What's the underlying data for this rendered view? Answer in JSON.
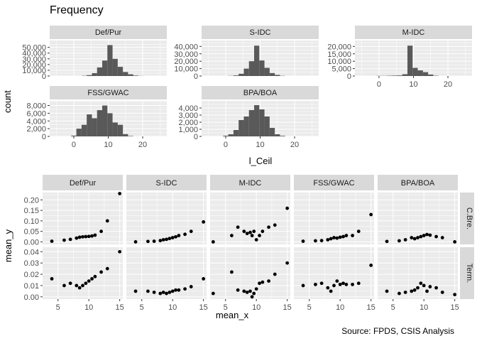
{
  "title": "Frequency",
  "source": "Source: FPDS, CSIS Analysis",
  "chart_data": [
    {
      "type": "bar",
      "title": "Frequency",
      "xlabel": "l_Ceil",
      "ylabel": "count",
      "x_ticks": [
        0,
        10,
        20
      ],
      "xlim": [
        -7,
        27
      ],
      "bin_width": 1.5,
      "grid": true,
      "bar_color": "#595959",
      "panels": [
        {
          "name": "Def/Pur",
          "y_ticks": [
            0,
            10000,
            20000,
            30000,
            40000,
            50000
          ],
          "y_tick_labels": [
            "0",
            "10,000",
            "20,000",
            "30,000",
            "40,000",
            "50,000"
          ],
          "ylim": [
            0,
            62000
          ],
          "bins": [
            {
              "x": 3,
              "count": 400
            },
            {
              "x": 4.5,
              "count": 1500
            },
            {
              "x": 6,
              "count": 5000
            },
            {
              "x": 7.5,
              "count": 15000
            },
            {
              "x": 9,
              "count": 27000
            },
            {
              "x": 10.5,
              "count": 54000
            },
            {
              "x": 12,
              "count": 30000
            },
            {
              "x": 13.5,
              "count": 16000
            },
            {
              "x": 15,
              "count": 7000
            },
            {
              "x": 16.5,
              "count": 3000
            },
            {
              "x": 18,
              "count": 800
            },
            {
              "x": 19.5,
              "count": 200
            }
          ]
        },
        {
          "name": "S-IDC",
          "y_ticks": [
            0,
            10000,
            20000,
            30000,
            40000
          ],
          "y_tick_labels": [
            "0",
            "10,000",
            "20,000",
            "30,000",
            "40,000"
          ],
          "ylim": [
            0,
            48000
          ],
          "bins": [
            {
              "x": 1.5,
              "count": 200
            },
            {
              "x": 3,
              "count": 800
            },
            {
              "x": 4.5,
              "count": 3000
            },
            {
              "x": 6,
              "count": 10000
            },
            {
              "x": 7.5,
              "count": 20000
            },
            {
              "x": 9,
              "count": 41000
            },
            {
              "x": 10.5,
              "count": 21000
            },
            {
              "x": 12,
              "count": 11000
            },
            {
              "x": 13.5,
              "count": 4000
            },
            {
              "x": 15,
              "count": 1500
            },
            {
              "x": 16.5,
              "count": 300
            }
          ]
        },
        {
          "name": "M-IDC",
          "y_ticks": [
            0,
            5000,
            10000,
            15000,
            20000
          ],
          "y_tick_labels": [
            "0",
            "5,000",
            "10,000",
            "15,000",
            "20,000"
          ],
          "ylim": [
            0,
            24000
          ],
          "bins": [
            {
              "x": 0,
              "count": 100
            },
            {
              "x": 1.5,
              "count": 100
            },
            {
              "x": 3,
              "count": 200
            },
            {
              "x": 4.5,
              "count": 300
            },
            {
              "x": 6,
              "count": 400
            },
            {
              "x": 7.5,
              "count": 1200
            },
            {
              "x": 9,
              "count": 20500
            },
            {
              "x": 10.5,
              "count": 5500
            },
            {
              "x": 12,
              "count": 3800
            },
            {
              "x": 13.5,
              "count": 2600
            },
            {
              "x": 15,
              "count": 1000
            },
            {
              "x": 16.5,
              "count": 200
            }
          ]
        },
        {
          "name": "FSS/GWAC",
          "y_ticks": [
            0,
            2000,
            4000,
            6000,
            8000
          ],
          "y_tick_labels": [
            "0",
            "2,000",
            "4,000",
            "6,000",
            "8,000"
          ],
          "ylim": [
            0,
            9200
          ],
          "bins": [
            {
              "x": 0,
              "count": 200
            },
            {
              "x": 1.5,
              "count": 2000
            },
            {
              "x": 3,
              "count": 3000
            },
            {
              "x": 4.5,
              "count": 5700
            },
            {
              "x": 6,
              "count": 4700
            },
            {
              "x": 7.5,
              "count": 6800
            },
            {
              "x": 9,
              "count": 8000
            },
            {
              "x": 10.5,
              "count": 6000
            },
            {
              "x": 12,
              "count": 3600
            },
            {
              "x": 13.5,
              "count": 3000
            },
            {
              "x": 15,
              "count": 600
            },
            {
              "x": 16.5,
              "count": 100
            }
          ]
        },
        {
          "name": "BPA/BOA",
          "y_ticks": [
            0,
            1000,
            2000,
            3000,
            4000
          ],
          "y_tick_labels": [
            "0",
            "1,000",
            "2,000",
            "3,000",
            "4,000"
          ],
          "ylim": [
            0,
            5000
          ],
          "bins": [
            {
              "x": 0,
              "count": 100
            },
            {
              "x": 1.5,
              "count": 300
            },
            {
              "x": 3,
              "count": 900
            },
            {
              "x": 4.5,
              "count": 2300
            },
            {
              "x": 6,
              "count": 2800
            },
            {
              "x": 7.5,
              "count": 3700
            },
            {
              "x": 9,
              "count": 4400
            },
            {
              "x": 10.5,
              "count": 3800
            },
            {
              "x": 12,
              "count": 2800
            },
            {
              "x": 13.5,
              "count": 1200
            },
            {
              "x": 15,
              "count": 300
            },
            {
              "x": 16.5,
              "count": 80
            }
          ]
        }
      ]
    },
    {
      "type": "scatter",
      "xlabel": "mean_x",
      "ylabel": "mean_y",
      "x_ticks": [
        5,
        10,
        15
      ],
      "xlim": [
        2.5,
        15.5
      ],
      "grid": true,
      "point_color": "#000000",
      "columns": [
        "Def/Pur",
        "S-IDC",
        "M-IDC",
        "FSS/GWAC",
        "BPA/BOA"
      ],
      "rows": [
        {
          "name": "C.Bre.",
          "y_ticks": [
            0.0,
            0.05,
            0.1,
            0.15,
            0.2
          ],
          "y_tick_labels": [
            "0.00",
            "0.05",
            "0.10",
            "0.15",
            "0.20"
          ],
          "ylim": [
            -0.012,
            0.235
          ],
          "panels": [
            {
              "x": [
                4,
                6,
                7,
                8,
                8.5,
                9,
                9.5,
                10,
                10.5,
                11,
                12,
                13,
                15
              ],
              "y": [
                0.003,
                0.008,
                0.012,
                0.018,
                0.022,
                0.024,
                0.025,
                0.026,
                0.028,
                0.032,
                0.05,
                0.1,
                0.23
              ]
            },
            {
              "x": [
                4,
                6,
                7,
                8,
                8.5,
                9,
                9.5,
                10,
                10.5,
                11,
                12,
                13,
                15
              ],
              "y": [
                0.0,
                0.002,
                0.003,
                0.006,
                0.01,
                0.012,
                0.016,
                0.02,
                0.024,
                0.03,
                0.036,
                0.05,
                0.095
              ]
            },
            {
              "x": [
                3,
                6,
                7,
                8,
                8.5,
                9,
                9.3,
                9.6,
                10,
                10.5,
                11,
                12,
                13,
                15
              ],
              "y": [
                0.0,
                0.03,
                0.07,
                0.05,
                0.04,
                0.045,
                0.03,
                0.05,
                0.01,
                0.03,
                0.05,
                0.07,
                0.08,
                0.16
              ]
            },
            {
              "x": [
                4,
                6,
                7,
                8,
                8.5,
                9,
                9.5,
                10,
                10.5,
                11,
                12,
                13,
                15
              ],
              "y": [
                0.003,
                0.005,
                0.006,
                0.01,
                0.015,
                0.02,
                0.018,
                0.022,
                0.025,
                0.03,
                0.03,
                0.05,
                0.13
              ]
            },
            {
              "x": [
                4,
                6,
                7,
                8,
                8.5,
                9,
                9.5,
                10,
                10.5,
                11,
                12,
                13,
                15
              ],
              "y": [
                0.002,
                0.005,
                0.01,
                0.02,
                0.015,
                0.02,
                0.025,
                0.03,
                0.035,
                0.032,
                0.025,
                0.02,
                0.0
              ]
            }
          ]
        },
        {
          "name": "Term.",
          "y_ticks": [
            0.0,
            0.01,
            0.02,
            0.03,
            0.04
          ],
          "y_tick_labels": [
            "0.00",
            "0.01",
            "0.02",
            "0.03",
            "0.04"
          ],
          "ylim": [
            -0.002,
            0.044
          ],
          "panels": [
            {
              "x": [
                4,
                6,
                7,
                8,
                8.5,
                9,
                9.5,
                10,
                10.5,
                11,
                12,
                13,
                15
              ],
              "y": [
                0.016,
                0.01,
                0.012,
                0.01,
                0.008,
                0.01,
                0.012,
                0.014,
                0.016,
                0.018,
                0.022,
                0.025,
                0.04
              ]
            },
            {
              "x": [
                4,
                6,
                7,
                8,
                8.5,
                9,
                9.5,
                10,
                10.5,
                11,
                12,
                13,
                15
              ],
              "y": [
                0.005,
                0.005,
                0.004,
                0.003,
                0.004,
                0.003,
                0.004,
                0.005,
                0.006,
                0.006,
                0.007,
                0.009,
                0.016
              ]
            },
            {
              "x": [
                3,
                6,
                7,
                8,
                8.5,
                9,
                9.3,
                9.6,
                10,
                10.5,
                11,
                12,
                13,
                15
              ],
              "y": [
                0.003,
                0.022,
                0.006,
                0.005,
                0.004,
                0.005,
                0.0,
                0.003,
                0.007,
                0.012,
                0.013,
                0.014,
                0.02,
                0.03
              ]
            },
            {
              "x": [
                4,
                6,
                7,
                8,
                8.5,
                9,
                9.5,
                10,
                10.5,
                11,
                12,
                13,
                15
              ],
              "y": [
                0.01,
                0.011,
                0.012,
                0.008,
                0.005,
                0.01,
                0.014,
                0.011,
                0.012,
                0.011,
                0.011,
                0.012,
                0.028
              ]
            },
            {
              "x": [
                4,
                6,
                7,
                8,
                8.5,
                9,
                9.5,
                10,
                10.5,
                11,
                12,
                13,
                15
              ],
              "y": [
                0.005,
                0.003,
                0.004,
                0.005,
                0.006,
                0.008,
                0.012,
                0.01,
                0.005,
                0.009,
                0.008,
                0.004,
                0.002
              ]
            }
          ]
        }
      ]
    }
  ]
}
